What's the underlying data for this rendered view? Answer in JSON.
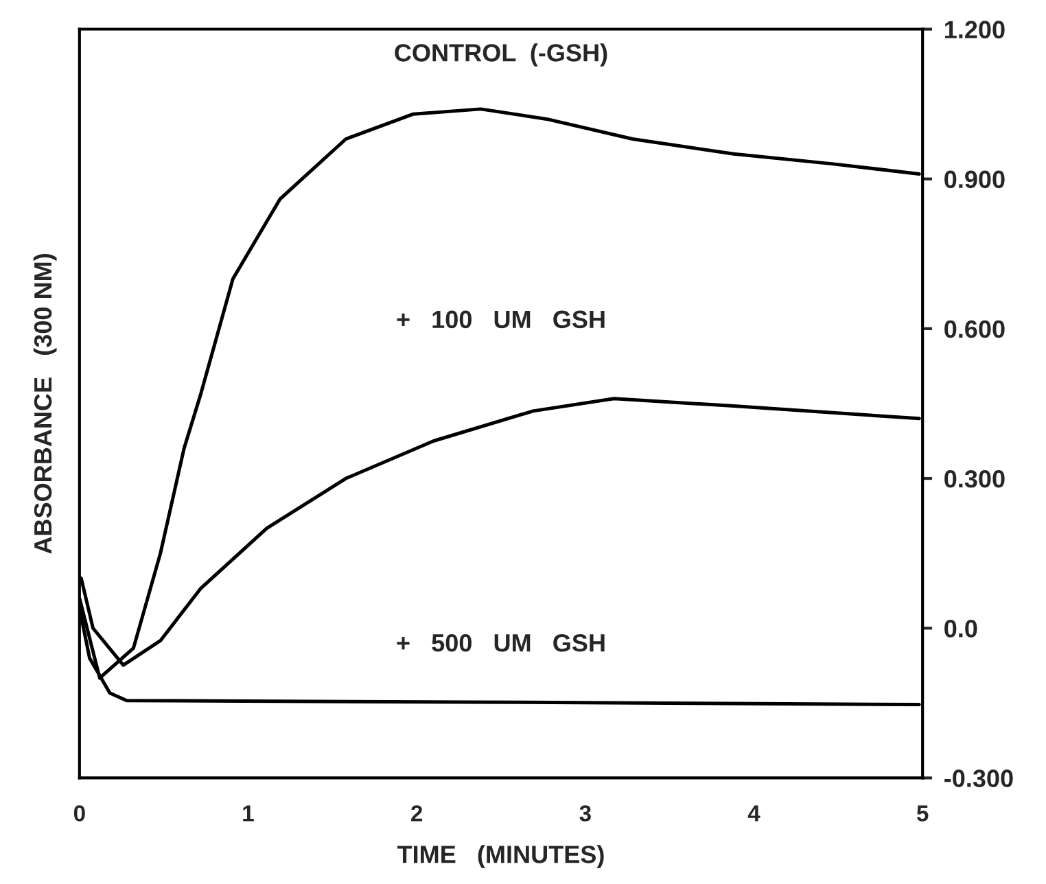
{
  "chart_data": {
    "type": "line",
    "xlabel": "TIME   (MINUTES)",
    "ylabel": "ABSORBANCE   (300 NM)",
    "xlim": [
      0,
      5
    ],
    "xticks": [
      0,
      1,
      2,
      3,
      4,
      5
    ],
    "ylim": [
      -0.3,
      1.2
    ],
    "yticks": [
      {
        "value": 1.2,
        "label": "1.200"
      },
      {
        "value": 0.9,
        "label": "0.900"
      },
      {
        "value": 0.6,
        "label": "0.600"
      },
      {
        "value": 0.3,
        "label": "0.300"
      },
      {
        "value": 0.0,
        "label": "0.0"
      },
      {
        "value": -0.3,
        "label": "-0.300"
      }
    ],
    "grid": false,
    "legend": false,
    "marker": "none",
    "line_style": "solid",
    "series": [
      {
        "name": "CONTROL  (-GSH)",
        "color": "#000000",
        "x": [
          0,
          0.12,
          0.32,
          0.48,
          0.62,
          0.72,
          0.91,
          1.19,
          1.58,
          1.98,
          2.38,
          2.77,
          3.28,
          3.88,
          4.47,
          4.98
        ],
        "values": [
          0.06,
          -0.1,
          -0.04,
          0.15,
          0.36,
          0.47,
          0.7,
          0.86,
          0.98,
          1.03,
          1.04,
          1.02,
          0.98,
          0.95,
          0.93,
          0.91
        ]
      },
      {
        "name": "+   100   UM   GSH",
        "color": "#000000",
        "x": [
          0.01,
          0.08,
          0.26,
          0.48,
          0.72,
          1.11,
          1.58,
          2.1,
          2.69,
          3.17,
          3.88,
          4.98
        ],
        "values": [
          0.1,
          0.0,
          -0.074,
          -0.025,
          0.08,
          0.2,
          0.3,
          0.375,
          0.435,
          0.46,
          0.445,
          0.42
        ]
      },
      {
        "name": "+   500   UM   GSH",
        "color": "#000000",
        "x": [
          0,
          0.06,
          0.18,
          0.28,
          2.3,
          4.98
        ],
        "values": [
          0.04,
          -0.06,
          -0.13,
          -0.145,
          -0.148,
          -0.153
        ]
      }
    ]
  }
}
